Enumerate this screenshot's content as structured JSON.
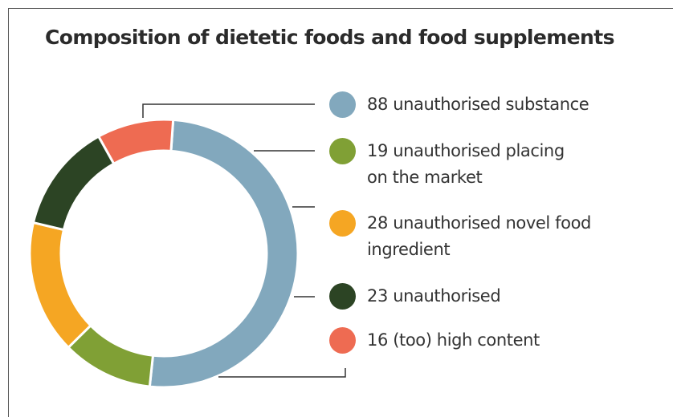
{
  "chart_data": {
    "type": "pie",
    "variant": "donut",
    "title": "Composition of dietetic foods and food supplements",
    "legend_position": "right",
    "slices": [
      {
        "value": 88,
        "label": "unauthorised substance",
        "lines": [
          "88 unauthorised substance"
        ],
        "color": "#82a8bd"
      },
      {
        "value": 19,
        "label": "unauthorised placing on the market",
        "lines": [
          "19 unauthorised placing",
          "on the market"
        ],
        "color": "#80a035"
      },
      {
        "value": 28,
        "label": "unauthorised novel food ingredient",
        "lines": [
          "28 unauthorised novel food",
          "ingredient"
        ],
        "color": "#f5a623"
      },
      {
        "value": 23,
        "label": "unauthorised",
        "lines": [
          "23 unauthorised"
        ],
        "color": "#2c4424"
      },
      {
        "value": 16,
        "label": "(too) high content",
        "lines": [
          "16 (too) high content"
        ],
        "color": "#ee6b52"
      }
    ]
  }
}
